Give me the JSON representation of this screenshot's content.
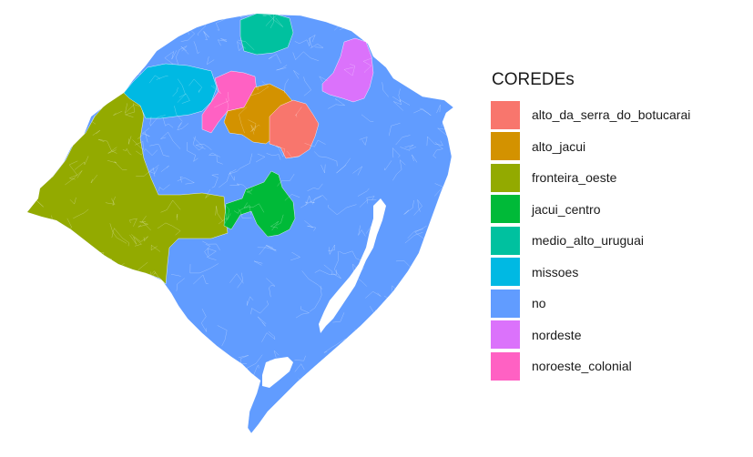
{
  "legend": {
    "title": "COREDEs",
    "items": [
      {
        "label": "alto_da_serra_do_botucarai",
        "color": "#F8766D"
      },
      {
        "label": "alto_jacui",
        "color": "#D39200"
      },
      {
        "label": "fronteira_oeste",
        "color": "#93AA00"
      },
      {
        "label": "jacui_centro",
        "color": "#00BA38"
      },
      {
        "label": "medio_alto_uruguai",
        "color": "#00C19F"
      },
      {
        "label": "missoes",
        "color": "#00B9E3"
      },
      {
        "label": "no",
        "color": "#619CFF"
      },
      {
        "label": "nordeste",
        "color": "#DB72FB"
      },
      {
        "label": "noroeste_colonial",
        "color": "#FF61C3"
      }
    ]
  },
  "map": {
    "region_colors": {
      "base": "#619CFF",
      "alto_da_serra_do_botucarai": "#F8766D",
      "alto_jacui": "#D39200",
      "fronteira_oeste": "#93AA00",
      "jacui_centro": "#00BA38",
      "medio_alto_uruguai": "#00C19F",
      "missoes": "#00B9E3",
      "nordeste": "#DB72FB",
      "noroeste_colonial": "#FF61C3"
    },
    "border_color": "#ffffff",
    "water_color": "#ffffff"
  }
}
